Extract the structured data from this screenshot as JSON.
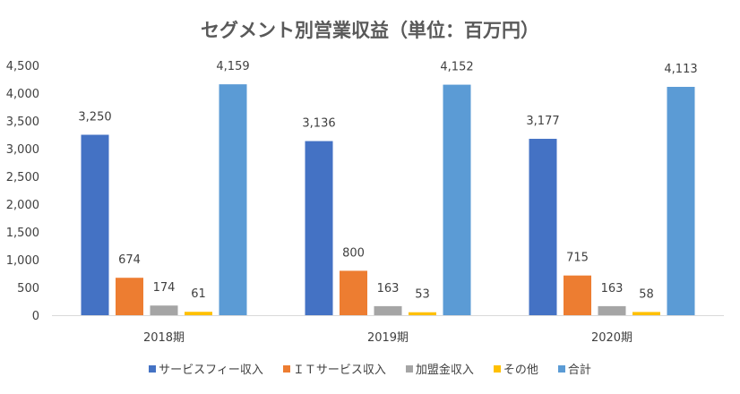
{
  "chart_data": {
    "type": "bar",
    "title": "セグメント別営業収益（単位：百万円）",
    "categories": [
      "2018期",
      "2019期",
      "2020期"
    ],
    "series": [
      {
        "name": "サービスフィー収入",
        "color": "#4472C4",
        "values": [
          3250,
          3136,
          3177
        ],
        "labels": [
          "3,250",
          "3,136",
          "3,177"
        ]
      },
      {
        "name": "ＩＴサービス収入",
        "color": "#ED7D31",
        "values": [
          674,
          800,
          715
        ],
        "labels": [
          "674",
          "800",
          "715"
        ]
      },
      {
        "name": "加盟金収入",
        "color": "#A5A5A5",
        "values": [
          174,
          163,
          163
        ],
        "labels": [
          "174",
          "163",
          "163"
        ]
      },
      {
        "name": "その他",
        "color": "#FFC000",
        "values": [
          61,
          53,
          58
        ],
        "labels": [
          "61",
          "53",
          "58"
        ]
      },
      {
        "name": "合計",
        "color": "#5B9BD5",
        "values": [
          4159,
          4152,
          4113
        ],
        "labels": [
          "4,159",
          "4,152",
          "4,113"
        ]
      }
    ],
    "ylim": [
      0,
      4500
    ],
    "yticks": [
      "0",
      "500",
      "1,000",
      "1,500",
      "2,000",
      "2,500",
      "3,000",
      "3,500",
      "4,000",
      "4,500"
    ],
    "grid": false,
    "legend": "bottom"
  }
}
